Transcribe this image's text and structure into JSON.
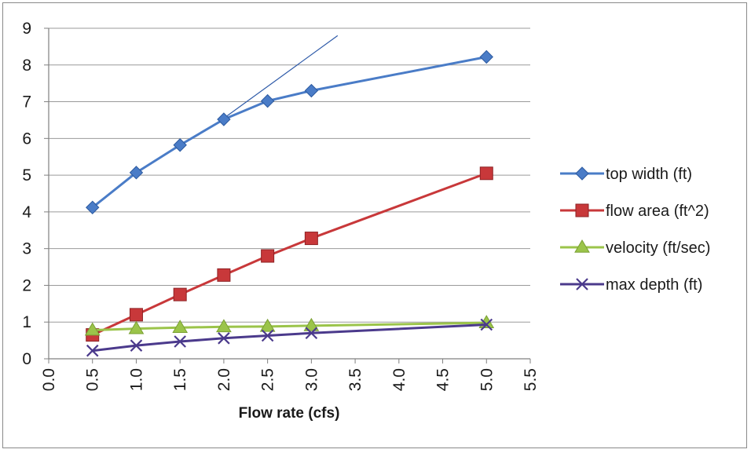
{
  "chart_data": {
    "type": "line",
    "title": "",
    "xlabel": "Flow rate (cfs)",
    "ylabel": "",
    "xlim": [
      0.0,
      5.5
    ],
    "ylim": [
      0,
      9
    ],
    "x_ticks": [
      "0.0",
      "0.5",
      "1.0",
      "1.5",
      "2.0",
      "2.5",
      "3.0",
      "3.5",
      "4.0",
      "4.5",
      "5.0",
      "5.5"
    ],
    "y_ticks": [
      "0",
      "1",
      "2",
      "3",
      "4",
      "5",
      "6",
      "7",
      "8",
      "9"
    ],
    "grid": "horizontal",
    "legend_position": "right",
    "x": [
      0.5,
      1.0,
      1.5,
      2.0,
      2.5,
      3.0,
      5.0
    ],
    "series": [
      {
        "name": "top width (ft)",
        "color": "#4a7cc7",
        "marker": "diamond",
        "values": [
          4.12,
          5.07,
          5.82,
          6.52,
          7.02,
          7.3,
          8.22
        ]
      },
      {
        "name": "flow area (ft^2)",
        "color": "#c8383a",
        "marker": "square",
        "values": [
          0.65,
          1.2,
          1.75,
          2.28,
          2.8,
          3.28,
          5.05
        ]
      },
      {
        "name": "velocity (ft/sec)",
        "color": "#9bc44a",
        "marker": "triangle",
        "values": [
          0.78,
          0.82,
          0.85,
          0.87,
          0.88,
          0.9,
          0.98
        ]
      },
      {
        "name": "max depth (ft)",
        "color": "#4b3a8c",
        "marker": "x",
        "values": [
          0.22,
          0.36,
          0.47,
          0.56,
          0.63,
          0.7,
          0.93
        ]
      }
    ],
    "annotations": [
      {
        "type": "line",
        "color": "#2e5aa8",
        "points": [
          [
            2.0,
            6.55
          ],
          [
            3.3,
            8.8
          ]
        ]
      }
    ]
  }
}
